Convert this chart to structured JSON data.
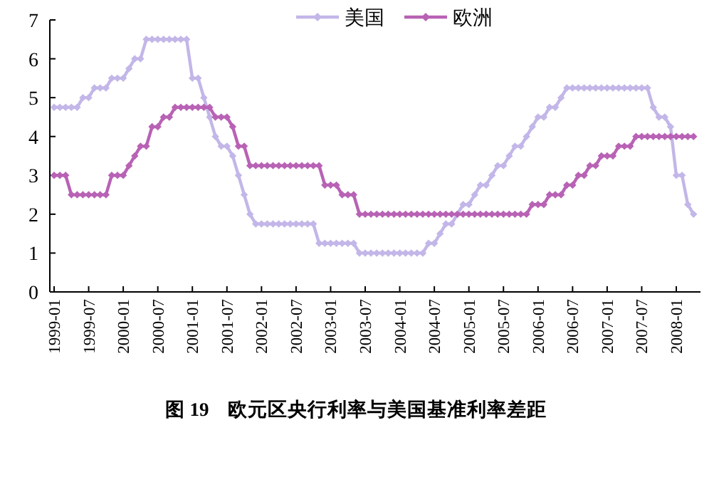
{
  "chart_data": {
    "type": "line",
    "title": "图 19    欧元区央行利率与美国基准利率差距",
    "categories": [
      "1999-01",
      null,
      null,
      null,
      null,
      null,
      "1999-07",
      null,
      null,
      null,
      null,
      null,
      "2000-01",
      null,
      null,
      null,
      null,
      null,
      "2000-07",
      null,
      null,
      null,
      null,
      null,
      "2001-01",
      null,
      null,
      null,
      null,
      null,
      "2001-07",
      null,
      null,
      null,
      null,
      null,
      "2002-01",
      null,
      null,
      null,
      null,
      null,
      "2002-07",
      null,
      null,
      null,
      null,
      null,
      "2003-01",
      null,
      null,
      null,
      null,
      null,
      "2003-07",
      null,
      null,
      null,
      null,
      null,
      "2004-01",
      null,
      null,
      null,
      null,
      null,
      "2004-07",
      null,
      null,
      null,
      null,
      null,
      "2005-01",
      null,
      null,
      null,
      null,
      null,
      "2005-07",
      null,
      null,
      null,
      null,
      null,
      "2006-01",
      null,
      null,
      null,
      null,
      null,
      "2006-07",
      null,
      null,
      null,
      null,
      null,
      "2007-01",
      null,
      null,
      null,
      null,
      null,
      "2007-07",
      null,
      null,
      null,
      null,
      null,
      "2008-01",
      null,
      null,
      null
    ],
    "series": [
      {
        "name": "美国",
        "color": "#c3b6e8",
        "values": [
          4.75,
          4.75,
          4.75,
          4.75,
          4.75,
          5.0,
          5.0,
          5.25,
          5.25,
          5.25,
          5.5,
          5.5,
          5.5,
          5.75,
          6.0,
          6.0,
          6.5,
          6.5,
          6.5,
          6.5,
          6.5,
          6.5,
          6.5,
          6.5,
          5.5,
          5.5,
          5.0,
          4.5,
          4.0,
          3.75,
          3.75,
          3.5,
          3.0,
          2.5,
          2.0,
          1.75,
          1.75,
          1.75,
          1.75,
          1.75,
          1.75,
          1.75,
          1.75,
          1.75,
          1.75,
          1.75,
          1.25,
          1.25,
          1.25,
          1.25,
          1.25,
          1.25,
          1.25,
          1.0,
          1.0,
          1.0,
          1.0,
          1.0,
          1.0,
          1.0,
          1.0,
          1.0,
          1.0,
          1.0,
          1.0,
          1.25,
          1.25,
          1.5,
          1.75,
          1.75,
          2.0,
          2.25,
          2.25,
          2.5,
          2.75,
          2.75,
          3.0,
          3.25,
          3.25,
          3.5,
          3.75,
          3.75,
          4.0,
          4.25,
          4.5,
          4.5,
          4.75,
          4.75,
          5.0,
          5.25,
          5.25,
          5.25,
          5.25,
          5.25,
          5.25,
          5.25,
          5.25,
          5.25,
          5.25,
          5.25,
          5.25,
          5.25,
          5.25,
          5.25,
          4.75,
          4.5,
          4.5,
          4.25,
          3.0,
          3.0,
          2.25,
          2.0
        ]
      },
      {
        "name": "欧洲",
        "color": "#b862b5",
        "values": [
          3.0,
          3.0,
          3.0,
          2.5,
          2.5,
          2.5,
          2.5,
          2.5,
          2.5,
          2.5,
          3.0,
          3.0,
          3.0,
          3.25,
          3.5,
          3.75,
          3.75,
          4.25,
          4.25,
          4.5,
          4.5,
          4.75,
          4.75,
          4.75,
          4.75,
          4.75,
          4.75,
          4.75,
          4.5,
          4.5,
          4.5,
          4.25,
          3.75,
          3.75,
          3.25,
          3.25,
          3.25,
          3.25,
          3.25,
          3.25,
          3.25,
          3.25,
          3.25,
          3.25,
          3.25,
          3.25,
          3.25,
          2.75,
          2.75,
          2.75,
          2.5,
          2.5,
          2.5,
          2.0,
          2.0,
          2.0,
          2.0,
          2.0,
          2.0,
          2.0,
          2.0,
          2.0,
          2.0,
          2.0,
          2.0,
          2.0,
          2.0,
          2.0,
          2.0,
          2.0,
          2.0,
          2.0,
          2.0,
          2.0,
          2.0,
          2.0,
          2.0,
          2.0,
          2.0,
          2.0,
          2.0,
          2.0,
          2.0,
          2.25,
          2.25,
          2.25,
          2.5,
          2.5,
          2.5,
          2.75,
          2.75,
          3.0,
          3.0,
          3.25,
          3.25,
          3.5,
          3.5,
          3.5,
          3.75,
          3.75,
          3.75,
          4.0,
          4.0,
          4.0,
          4.0,
          4.0,
          4.0,
          4.0,
          4.0,
          4.0,
          4.0,
          4.0
        ]
      }
    ],
    "ylim": [
      0,
      7
    ],
    "yticks": [
      0,
      1,
      2,
      3,
      4,
      5,
      6,
      7
    ],
    "legend": "top right",
    "marker": "diamond",
    "line_style": "solid"
  }
}
